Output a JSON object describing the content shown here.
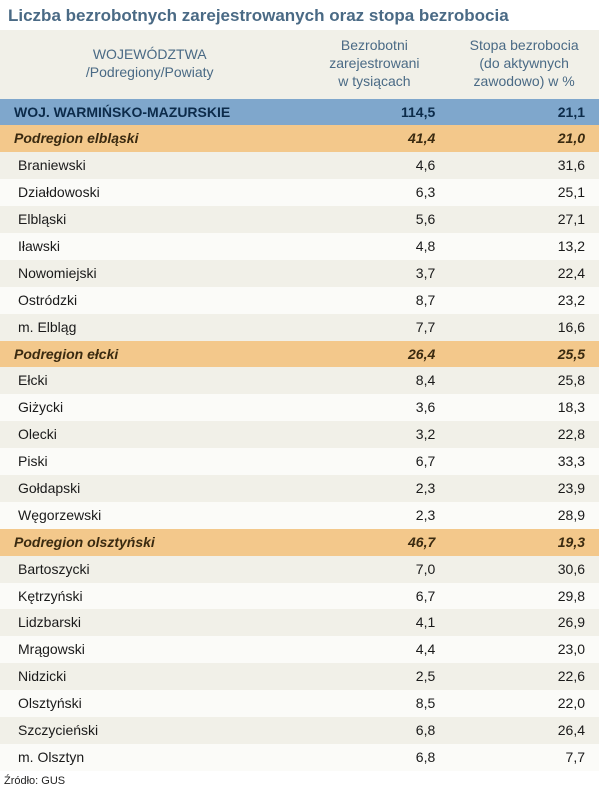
{
  "title": "Liczba bezrobotnych zarejestrowanych oraz stopa bezrobocia",
  "source": "Źródło: GUS",
  "colors": {
    "title_text": "#4a6a85",
    "header_bg": "#f1f0e8",
    "header_text": "#4a6a85",
    "voiv_bg": "#7fa7cc",
    "voiv_text": "#0c2b4a",
    "sub_bg": "#f3c88b",
    "sub_text": "#3a2a10",
    "row_odd_bg": "#f1f0e8",
    "row_even_bg": "#fbfbf8",
    "row_text": "#1a1a1a"
  },
  "columns": {
    "name_line1": "WOJEWÓDZTWA",
    "name_line2": "/Podregiony/Powiaty",
    "v1_line1": "Bezrobotni",
    "v1_line2": "zarejestrowani",
    "v1_line3": "w tysiącach",
    "v2_line1": "Stopa bezrobocia",
    "v2_line2": "(do aktywnych",
    "v2_line3": "zawodowo) w %"
  },
  "rows": [
    {
      "tier": "voiv",
      "name": "WOJ. WARMIŃSKO-MAZURSKIE",
      "v1": "114,5",
      "v2": "21,1"
    },
    {
      "tier": "sub",
      "name": "Podregion elbląski",
      "v1": "41,4",
      "v2": "21,0"
    },
    {
      "tier": "row",
      "name": "Braniewski",
      "v1": "4,6",
      "v2": "31,6"
    },
    {
      "tier": "row",
      "name": "Działdowoski",
      "v1": "6,3",
      "v2": "25,1"
    },
    {
      "tier": "row",
      "name": "Elbląski",
      "v1": "5,6",
      "v2": "27,1"
    },
    {
      "tier": "row",
      "name": "Iławski",
      "v1": "4,8",
      "v2": "13,2"
    },
    {
      "tier": "row",
      "name": "Nowomiejski",
      "v1": "3,7",
      "v2": "22,4"
    },
    {
      "tier": "row",
      "name": "Ostródzki",
      "v1": "8,7",
      "v2": "23,2"
    },
    {
      "tier": "row",
      "name": "m. Elbląg",
      "v1": "7,7",
      "v2": "16,6"
    },
    {
      "tier": "sub",
      "name": "Podregion ełcki",
      "v1": "26,4",
      "v2": "25,5"
    },
    {
      "tier": "row",
      "name": "Ełcki",
      "v1": "8,4",
      "v2": "25,8"
    },
    {
      "tier": "row",
      "name": "Giżycki",
      "v1": "3,6",
      "v2": "18,3"
    },
    {
      "tier": "row",
      "name": "Olecki",
      "v1": "3,2",
      "v2": "22,8"
    },
    {
      "tier": "row",
      "name": "Piski",
      "v1": "6,7",
      "v2": "33,3"
    },
    {
      "tier": "row",
      "name": "Gołdapski",
      "v1": "2,3",
      "v2": "23,9"
    },
    {
      "tier": "row",
      "name": "Węgorzewski",
      "v1": "2,3",
      "v2": "28,9"
    },
    {
      "tier": "sub",
      "name": "Podregion olsztyński",
      "v1": "46,7",
      "v2": "19,3"
    },
    {
      "tier": "row",
      "name": "Bartoszycki",
      "v1": "7,0",
      "v2": "30,6"
    },
    {
      "tier": "row",
      "name": "Kętrzyński",
      "v1": "6,7",
      "v2": "29,8"
    },
    {
      "tier": "row",
      "name": "Lidzbarski",
      "v1": "4,1",
      "v2": "26,9"
    },
    {
      "tier": "row",
      "name": "Mrągowski",
      "v1": "4,4",
      "v2": "23,0"
    },
    {
      "tier": "row",
      "name": "Nidzicki",
      "v1": "2,5",
      "v2": "22,6"
    },
    {
      "tier": "row",
      "name": "Olsztyński",
      "v1": "8,5",
      "v2": "22,0"
    },
    {
      "tier": "row",
      "name": "Szczycieński",
      "v1": "6,8",
      "v2": "26,4"
    },
    {
      "tier": "row",
      "name": "m. Olsztyn",
      "v1": "6,8",
      "v2": "7,7"
    }
  ]
}
